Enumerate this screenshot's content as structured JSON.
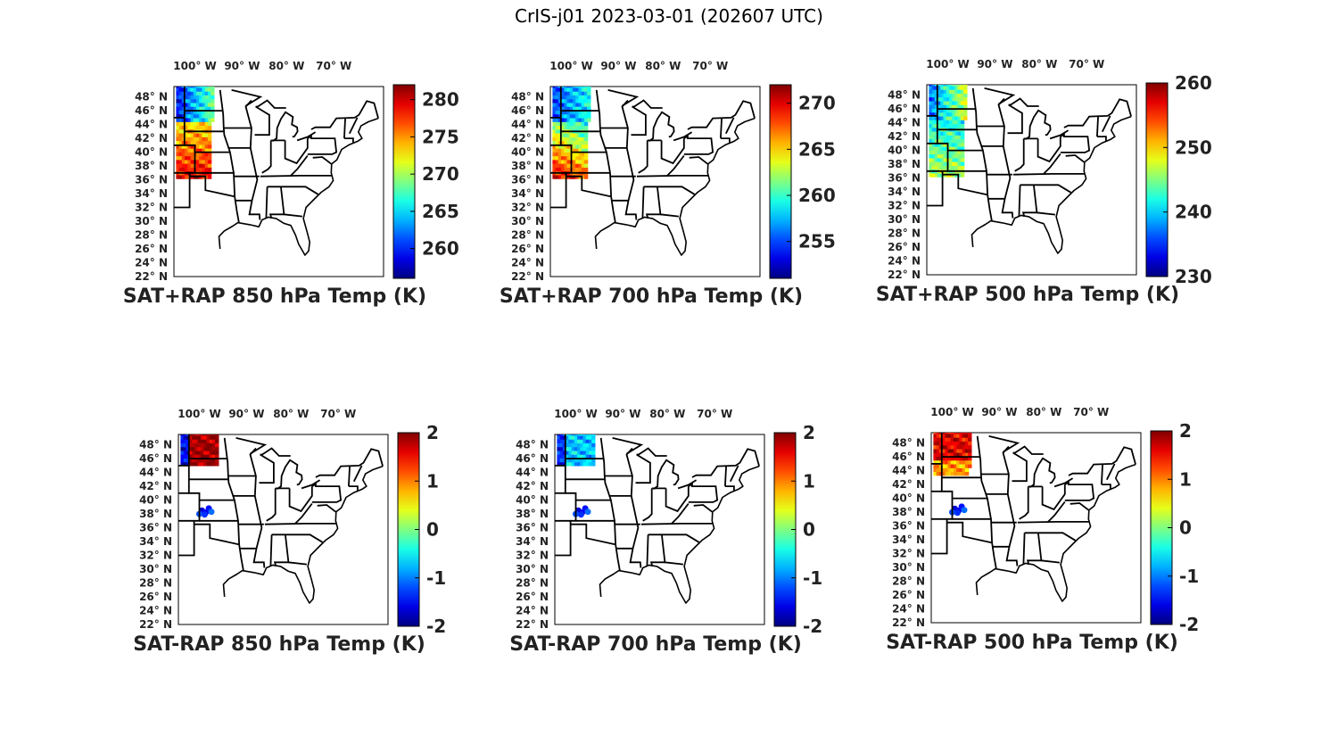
{
  "title": "CrIS-j01 2023-03-01 (202607 UTC)",
  "lon_labels": [
    "100° W",
    "90° W",
    "80° W",
    "70° W"
  ],
  "lat_labels": [
    "48° N",
    "46° N",
    "44° N",
    "42° N",
    "40° N",
    "38° N",
    "36° N",
    "34° N",
    "32° N",
    "30° N",
    "28° N",
    "26° N",
    "24° N",
    "22° N"
  ],
  "colormap": "jet",
  "panels": [
    {
      "title": "SAT+RAP 850 hPa Temp (K)",
      "colorbar": {
        "range": [
          256,
          282
        ],
        "ticks": [
          280,
          275,
          270,
          265,
          260
        ]
      }
    },
    {
      "title": "SAT+RAP 700 hPa Temp (K)",
      "colorbar": {
        "range": [
          251,
          272
        ],
        "ticks": [
          270,
          265,
          260,
          255
        ]
      }
    },
    {
      "title": "SAT+RAP 500 hPa Temp (K)",
      "colorbar": {
        "range": [
          230,
          260
        ],
        "ticks": [
          260,
          250,
          240,
          230
        ]
      }
    },
    {
      "title": "SAT-RAP 850 hPa Temp (K)",
      "colorbar": {
        "range": [
          -2,
          2
        ],
        "ticks": [
          2,
          1,
          0,
          -1,
          -2
        ]
      }
    },
    {
      "title": "SAT-RAP 700 hPa Temp (K)",
      "colorbar": {
        "range": [
          -2,
          2
        ],
        "ticks": [
          2,
          1,
          0,
          -1,
          -2
        ]
      }
    },
    {
      "title": "SAT-RAP 500 hPa Temp (K)",
      "colorbar": {
        "range": [
          -2,
          2
        ],
        "ticks": [
          2,
          1,
          0,
          -1,
          -2
        ]
      }
    }
  ]
}
